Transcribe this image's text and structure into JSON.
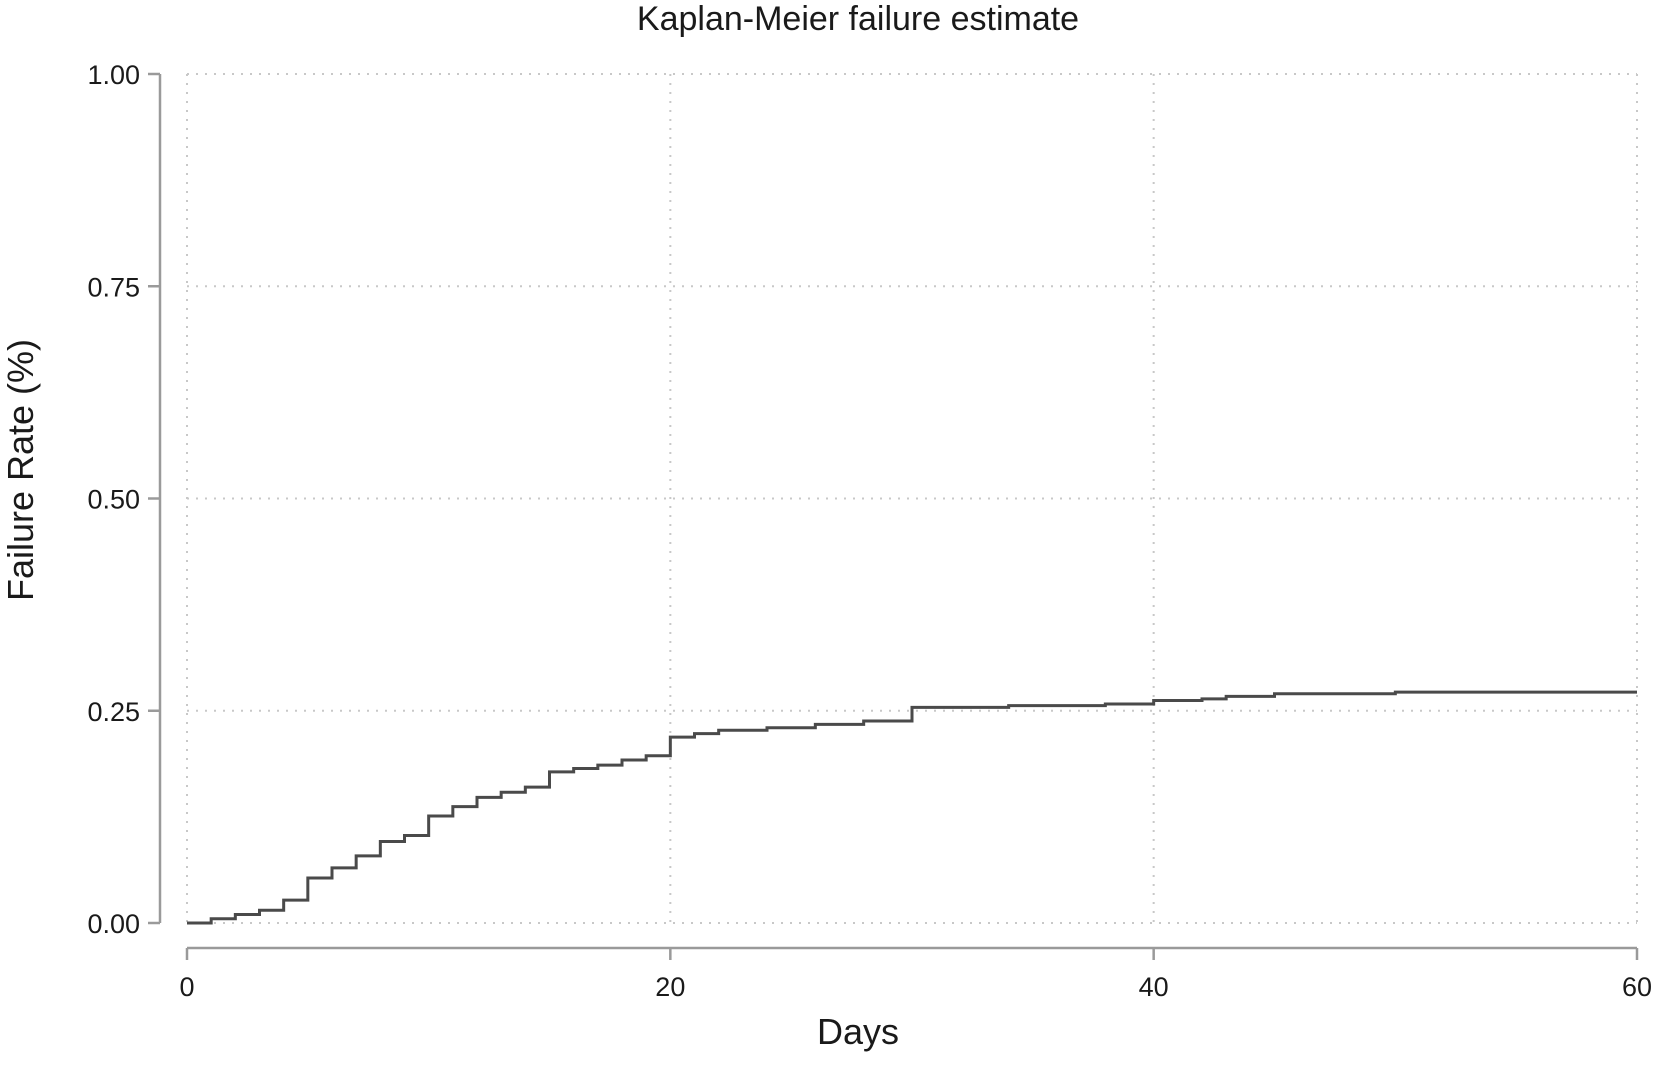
{
  "chart_data": {
    "type": "line",
    "title": "Kaplan-Meier failure estimate",
    "xlabel": "Days",
    "ylabel": "Failure Rate (%)",
    "xlim": [
      0,
      60
    ],
    "ylim": [
      0,
      1
    ],
    "x_ticks": [
      0,
      20,
      40,
      60
    ],
    "y_ticks": [
      0,
      0.25,
      0.5,
      0.75,
      1
    ],
    "x_tick_labels": [
      "0",
      "20",
      "40",
      "60"
    ],
    "y_tick_labels": [
      "0.00",
      "0.25",
      "0.50",
      "0.75",
      "1.00"
    ],
    "grid": true,
    "step": true,
    "line_color": "#4a4a4a",
    "series": [
      {
        "x": [
          0,
          1,
          2,
          3,
          4,
          5,
          6,
          7,
          8,
          9,
          10,
          11,
          12,
          13,
          14,
          15,
          16,
          17,
          18,
          19,
          20,
          21,
          22,
          24,
          26,
          28,
          30,
          34,
          38,
          40,
          42,
          43,
          45,
          50,
          60
        ],
        "y": [
          0.0,
          0.005,
          0.01,
          0.015,
          0.027,
          0.053,
          0.065,
          0.079,
          0.096,
          0.103,
          0.126,
          0.137,
          0.148,
          0.154,
          0.16,
          0.178,
          0.182,
          0.186,
          0.192,
          0.197,
          0.219,
          0.223,
          0.227,
          0.23,
          0.234,
          0.238,
          0.254,
          0.256,
          0.258,
          0.262,
          0.264,
          0.267,
          0.27,
          0.272,
          0.272
        ]
      }
    ]
  }
}
